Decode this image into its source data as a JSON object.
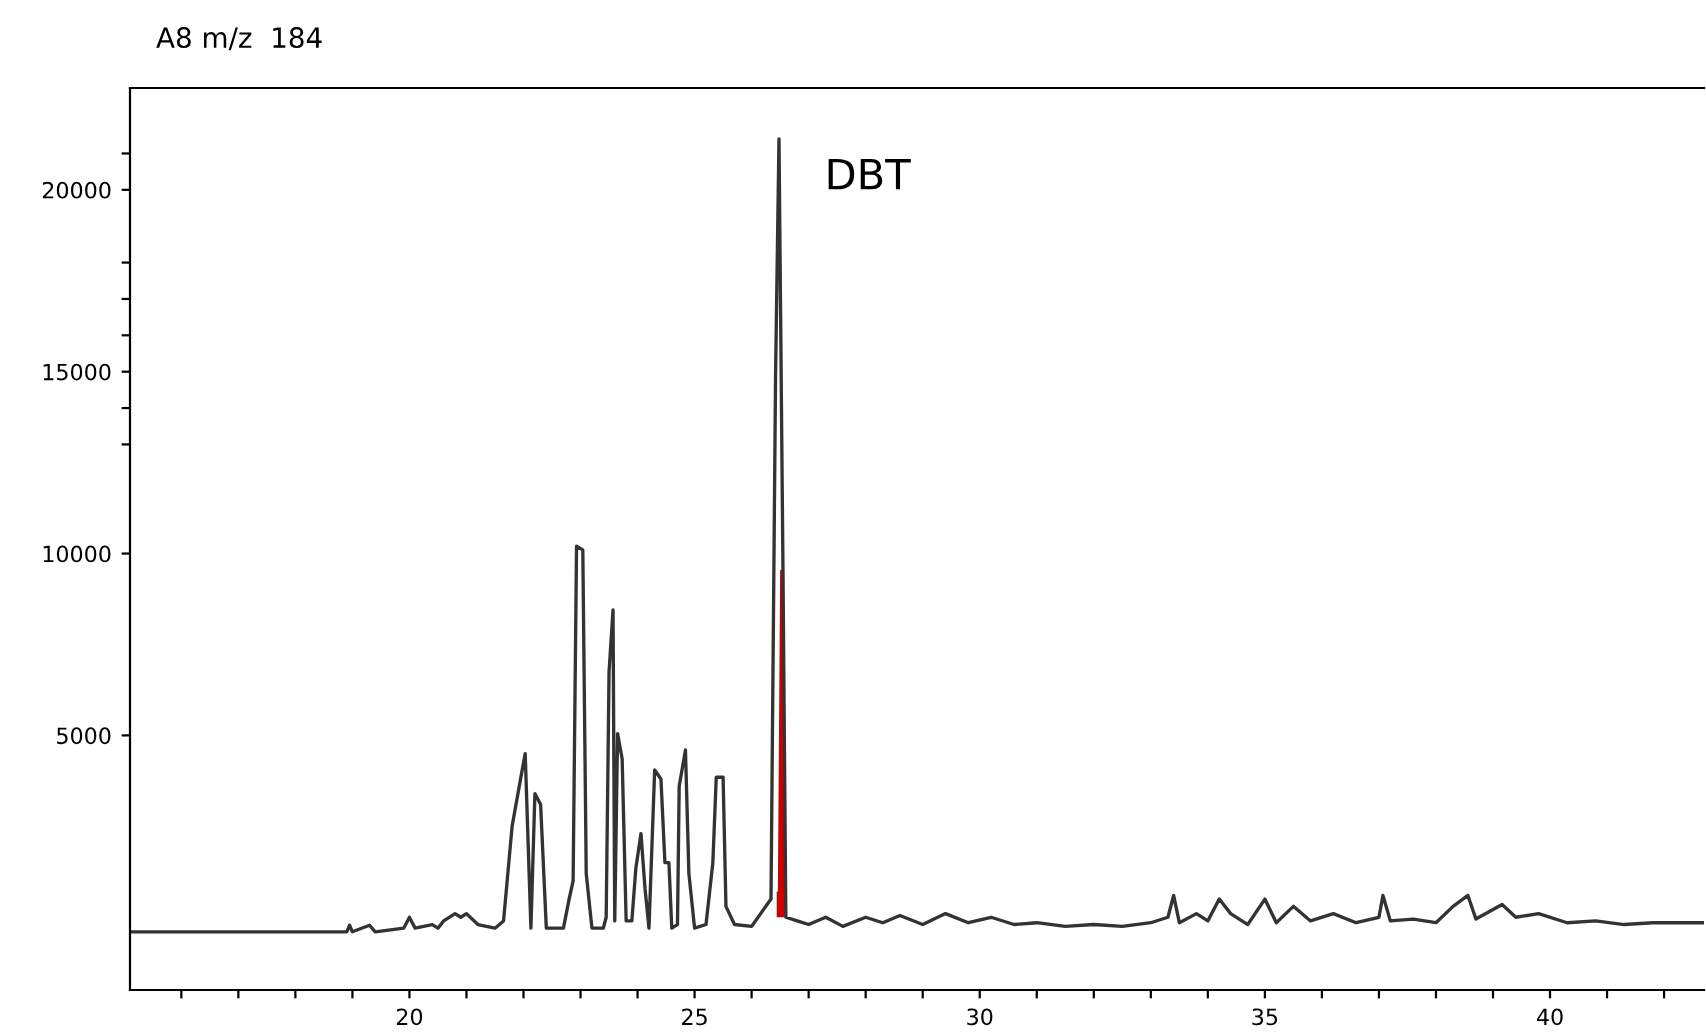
{
  "chart_data": {
    "type": "line",
    "title": "A8 m/z  184",
    "xlim": [
      15.1,
      42.7
    ],
    "ylim": [
      -2000,
      22800
    ],
    "xticks": [
      {
        "value": 16,
        "label": null
      },
      {
        "value": 17,
        "label": null
      },
      {
        "value": 18,
        "label": null
      },
      {
        "value": 19,
        "label": null
      },
      20,
      {
        "value": 21,
        "label": null
      },
      {
        "value": 22,
        "label": null
      },
      {
        "value": 23,
        "label": null
      },
      {
        "value": 24,
        "label": null
      },
      25,
      {
        "value": 26,
        "label": null
      },
      {
        "value": 27,
        "label": null
      },
      {
        "value": 28,
        "label": null
      },
      {
        "value": 29,
        "label": null
      },
      30,
      {
        "value": 31,
        "label": null
      },
      {
        "value": 32,
        "label": null
      },
      {
        "value": 33,
        "label": null
      },
      {
        "value": 34,
        "label": null
      },
      35,
      {
        "value": 36,
        "label": null
      },
      {
        "value": 37,
        "label": null
      },
      {
        "value": 38,
        "label": null
      },
      {
        "value": 39,
        "label": null
      },
      40,
      {
        "value": 41,
        "label": null
      },
      {
        "value": 42,
        "label": null
      }
    ],
    "yticks": [
      5000,
      10000,
      {
        "value": 13000,
        "label": null
      },
      {
        "value": 14000,
        "label": null
      },
      15000,
      {
        "value": 16000,
        "label": null
      },
      {
        "value": 17000,
        "label": null
      },
      {
        "value": 18000,
        "label": null
      },
      20000,
      {
        "value": 21000,
        "label": null
      }
    ],
    "grid": false,
    "legend": false,
    "annotations": [
      {
        "text": "DBT",
        "x": 26.5,
        "y": 21400
      }
    ],
    "series": [
      {
        "color": "#333333",
        "x": [
          15.1,
          18.9,
          18.95,
          19.0,
          19.3,
          19.4,
          19.9,
          20.0,
          20.1,
          20.4,
          20.5,
          20.6,
          20.8,
          20.9,
          21.0,
          21.2,
          21.5,
          21.65,
          21.8,
          21.96,
          22.03,
          22.13,
          22.2,
          22.3,
          22.4,
          22.7,
          22.8,
          22.87,
          22.93,
          23.04,
          23.1,
          23.2,
          23.4,
          23.45,
          23.5,
          23.57,
          23.6,
          23.65,
          23.73,
          23.8,
          23.9,
          23.97,
          24.06,
          24.13,
          24.2,
          24.3,
          24.41,
          24.48,
          24.55,
          24.6,
          24.7,
          24.73,
          24.84,
          24.9,
          25.0,
          25.2,
          25.32,
          25.38,
          25.5,
          25.55,
          25.7,
          26.0,
          26.34,
          26.42,
          26.48,
          26.55,
          26.6,
          26.8,
          27.0,
          27.3,
          27.6,
          28.0,
          28.3,
          28.6,
          29.0,
          29.4,
          29.8,
          30.2,
          30.6,
          31.0,
          31.5,
          32.0,
          32.5,
          33.0,
          33.3,
          33.4,
          33.5,
          33.8,
          34.0,
          34.2,
          34.4,
          34.7,
          35.0,
          35.2,
          35.5,
          35.8,
          36.2,
          36.6,
          37.0,
          37.07,
          37.2,
          37.6,
          38.0,
          38.3,
          38.56,
          38.7,
          39.16,
          39.4,
          39.8,
          40.3,
          40.8,
          41.3,
          41.8,
          42.2,
          42.7
        ],
        "values": [
          -400,
          -400,
          -220,
          -400,
          -220,
          -400,
          -300,
          0,
          -300,
          -200,
          -300,
          -100,
          100,
          0,
          100,
          -200,
          -300,
          -100,
          2500,
          3900,
          4500,
          -300,
          3400,
          3100,
          -300,
          -300,
          500,
          1000,
          10200,
          10100,
          1200,
          -300,
          -300,
          0,
          6750,
          8450,
          -100,
          5050,
          4350,
          -100,
          -100,
          1350,
          2300,
          800,
          -300,
          4050,
          3800,
          1500,
          1500,
          -300,
          -200,
          3600,
          4600,
          1200,
          -300,
          -200,
          1500,
          3850,
          3850,
          300,
          -200,
          -250,
          500,
          14900,
          21400,
          9550,
          0,
          -100,
          -200,
          0,
          -250,
          0,
          -150,
          50,
          -200,
          100,
          -150,
          0,
          -200,
          -150,
          -250,
          -200,
          -250,
          -150,
          0,
          600,
          -150,
          100,
          -100,
          500,
          100,
          -200,
          500,
          -150,
          300,
          -100,
          100,
          -150,
          0,
          600,
          -100,
          -50,
          -150,
          300,
          600,
          -50,
          350,
          0,
          100,
          -150,
          -100,
          -200,
          -150,
          -150,
          -150
        ]
      },
      {
        "type": "area",
        "color": "#cc0000",
        "x": [
          26.44,
          26.46,
          26.5,
          26.55,
          26.58
        ],
        "values": [
          700,
          700,
          9550,
          9550,
          0
        ]
      }
    ]
  }
}
